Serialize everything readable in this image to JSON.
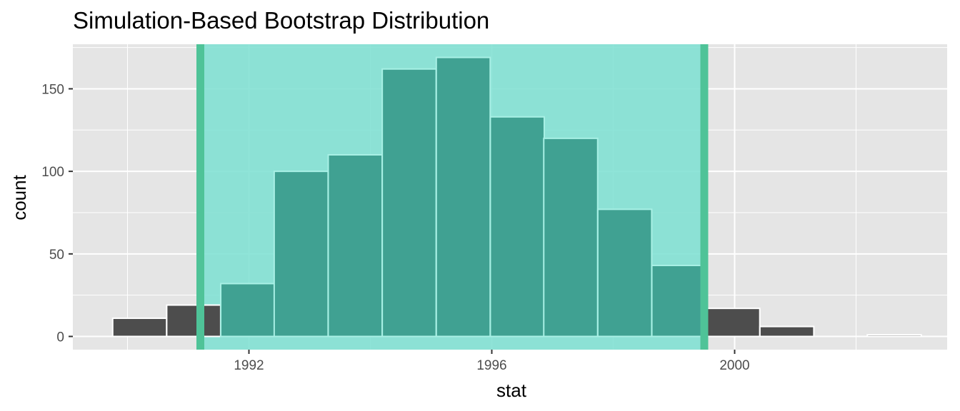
{
  "chart_data": {
    "type": "bar",
    "title": "Simulation-Based Bootstrap Distribution",
    "xlabel": "stat",
    "ylabel": "count",
    "xlim": [
      1989.1,
      2003.5
    ],
    "ylim": [
      -8,
      177
    ],
    "x_ticks": [
      1992,
      1996,
      2000
    ],
    "x_tick_labels": [
      "1992",
      "1996",
      "2000"
    ],
    "y_ticks": [
      0,
      50,
      100,
      150
    ],
    "y_tick_labels": [
      "0",
      "50",
      "100",
      "150"
    ],
    "grid": true,
    "legend": "none",
    "bin_width": 0.888,
    "bins": [
      {
        "x": 1990.2,
        "count": 11
      },
      {
        "x": 1991.09,
        "count": 19
      },
      {
        "x": 1991.98,
        "count": 32
      },
      {
        "x": 1992.86,
        "count": 100
      },
      {
        "x": 1993.75,
        "count": 110
      },
      {
        "x": 1994.64,
        "count": 162
      },
      {
        "x": 1995.53,
        "count": 169
      },
      {
        "x": 1996.42,
        "count": 133
      },
      {
        "x": 1997.3,
        "count": 120
      },
      {
        "x": 1998.19,
        "count": 77
      },
      {
        "x": 1999.08,
        "count": 43
      },
      {
        "x": 1999.97,
        "count": 17
      },
      {
        "x": 2000.86,
        "count": 6
      },
      {
        "x": 2001.75,
        "count": 0
      },
      {
        "x": 2002.63,
        "count": 1
      }
    ],
    "confidence_interval": {
      "lower": 1991.2,
      "upper": 1999.5
    },
    "colors": {
      "panel_bg": "#e5e5e5",
      "grid": "#ffffff",
      "bar_fill": "#4d4d4d",
      "bar_outline": "#ffffff",
      "ci_fill": "#7fe0d3",
      "ci_bar_fill": "#40a192",
      "ci_bar_outline": "#a8f0e5",
      "ci_line": "#4fc398"
    }
  }
}
